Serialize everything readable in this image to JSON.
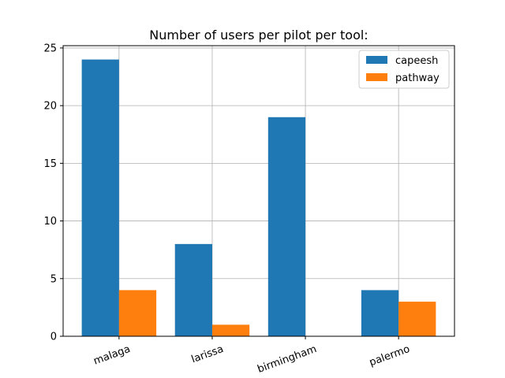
{
  "chart_data": {
    "type": "bar",
    "title": "Number of users per pilot per tool:",
    "xlabel": "",
    "ylabel": "",
    "categories": [
      "malaga",
      "larissa",
      "birmingham",
      "palermo"
    ],
    "series": [
      {
        "name": "capeesh",
        "values": [
          24,
          8,
          19,
          4
        ],
        "color": "#1f77b4"
      },
      {
        "name": "pathway",
        "values": [
          4,
          1,
          0,
          3
        ],
        "color": "#ff7f0e"
      }
    ],
    "ylim": [
      0,
      25
    ],
    "yticks": [
      0,
      5,
      10,
      15,
      20,
      25
    ],
    "grid": true,
    "legend": "top-right"
  }
}
